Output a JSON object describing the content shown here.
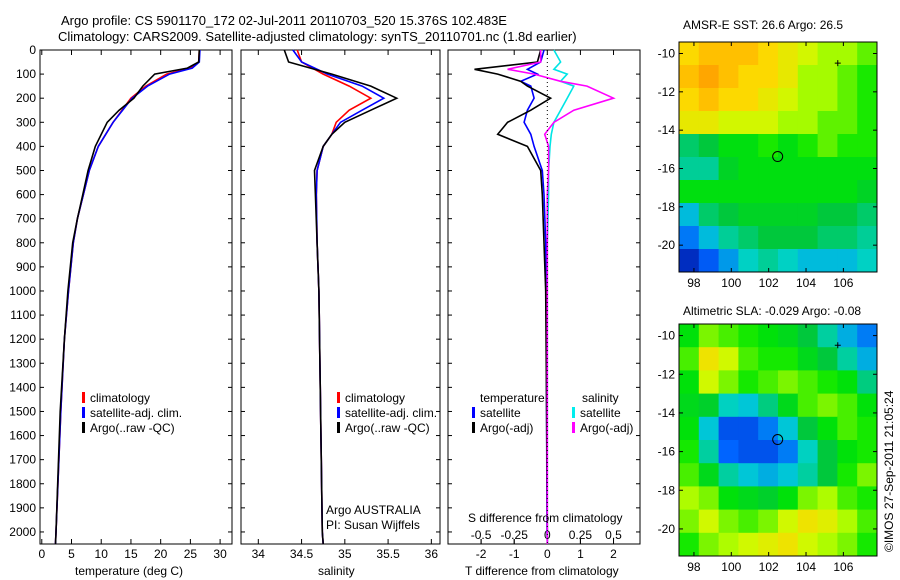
{
  "title": {
    "line1": "Argo profile: CS 5901170_172 02-Jul-2011 20110703_520 15.376S 102.483E",
    "line2": "Climatology: CARS2009. Satellite-adjusted climatology: synTS_20110701.nc (1.8d earlier)"
  },
  "legend_ts": {
    "clim": "climatology",
    "sat": "satellite-adj. clim.",
    "argo": "Argo(..raw -QC)"
  },
  "legend_diff": {
    "temp": "temperature",
    "sal": "salinity",
    "sat": "satellite",
    "argo": "Argo(-adj)"
  },
  "argo_note": {
    "line1": "Argo AUSTRALIA",
    "line2": "PI: Susan Wijffels"
  },
  "side_label": "©IMOS 27-Sep-2011 21:05:24",
  "colors": {
    "clim": "#ff0000",
    "sat": "#0000ff",
    "argo": "#000000",
    "s_sat": "#00e5e5",
    "s_argo": "#ff00ff"
  },
  "chart_data": [
    {
      "type": "line",
      "xlabel": "temperature (deg C)",
      "ylabel": "",
      "xlim": [
        -0.3,
        32
      ],
      "ylim": [
        2050,
        0
      ],
      "xticks": [
        0,
        5,
        10,
        15,
        20,
        25,
        30
      ],
      "yticks": [
        0,
        100,
        200,
        300,
        400,
        500,
        600,
        700,
        800,
        900,
        1000,
        1100,
        1200,
        1300,
        1400,
        1500,
        1600,
        1700,
        1800,
        1900,
        2000
      ],
      "depth": [
        0,
        50,
        75,
        100,
        150,
        200,
        250,
        300,
        400,
        500,
        600,
        700,
        800,
        1000,
        1200,
        1500,
        2000,
        2050
      ],
      "series": [
        {
          "name": "climatology",
          "values": [
            26.5,
            26.4,
            25,
            21,
            17.5,
            15,
            13.5,
            12,
            9.5,
            8,
            7,
            6,
            5.3,
            4.5,
            3.8,
            3.2,
            2.4,
            2.3
          ]
        },
        {
          "name": "satellite-adj. clim.",
          "values": [
            26.6,
            26.5,
            25.3,
            21.5,
            17.8,
            15.2,
            13.6,
            12,
            9.5,
            8,
            7,
            6,
            5.3,
            4.5,
            3.8,
            3.2,
            2.4,
            2.3
          ]
        },
        {
          "name": "Argo(..raw -QC)",
          "values": [
            26.5,
            26.4,
            24.5,
            19,
            17,
            15.5,
            13,
            11,
            9,
            7.8,
            6.9,
            6,
            5.2,
            4.4,
            3.8,
            3.1,
            2.4,
            2.3
          ]
        }
      ]
    },
    {
      "type": "line",
      "xlabel": "salinity",
      "xlim": [
        33.8,
        36.1
      ],
      "ylim": [
        2050,
        0
      ],
      "xticks": [
        34,
        34.5,
        35,
        35.5,
        36
      ],
      "depth": [
        0,
        50,
        100,
        150,
        200,
        250,
        300,
        350,
        400,
        500,
        600,
        800,
        1000,
        1500,
        2000,
        2050
      ],
      "series": [
        {
          "name": "climatology",
          "values": [
            34.45,
            34.5,
            34.75,
            35.05,
            35.3,
            35.05,
            34.9,
            34.85,
            34.75,
            34.68,
            34.67,
            34.68,
            34.7,
            34.72,
            34.74,
            34.75
          ]
        },
        {
          "name": "satellite-adj. clim.",
          "values": [
            34.4,
            34.5,
            34.8,
            35.2,
            35.45,
            35.2,
            34.95,
            34.85,
            34.75,
            34.68,
            34.67,
            34.68,
            34.7,
            34.72,
            34.74,
            34.75
          ]
        },
        {
          "name": "Argo(..raw -QC)",
          "values": [
            34.3,
            34.35,
            34.85,
            35.3,
            35.6,
            35.3,
            35.0,
            34.85,
            34.75,
            34.65,
            34.66,
            34.68,
            34.7,
            34.72,
            34.74,
            34.75
          ]
        }
      ]
    },
    {
      "type": "line",
      "xlabel": "T difference from climatology",
      "xlabel2": "S difference from climatology",
      "xlim": [
        -3,
        2.8
      ],
      "ylim": [
        2050,
        0
      ],
      "xticks": [
        -2,
        -1,
        0,
        1,
        2
      ],
      "xticks2": [
        -0.5,
        -0.25,
        0,
        0.25,
        0.5
      ],
      "depth": [
        0,
        50,
        80,
        100,
        130,
        150,
        200,
        250,
        300,
        350,
        400,
        500,
        600,
        800,
        1000,
        1500,
        2000,
        2050
      ],
      "series": [
        {
          "name": "T satellite",
          "values": [
            -0.1,
            -0.2,
            -0.6,
            -0.3,
            -0.8,
            -0.5,
            -0.4,
            -0.6,
            -0.7,
            -0.5,
            -0.4,
            -0.15,
            -0.1,
            -0.05,
            -0.03,
            -0.02,
            -0.01,
            0
          ]
        },
        {
          "name": "T Argo(-adj)",
          "values": [
            -0.2,
            -0.3,
            -2.2,
            -1.5,
            -0.8,
            -0.6,
            0.1,
            -0.5,
            -1.2,
            -1.5,
            -0.6,
            -0.2,
            -0.15,
            -0.1,
            -0.05,
            -0.02,
            0,
            0
          ]
        },
        {
          "name": "S satellite",
          "values": [
            0.05,
            0.1,
            0.05,
            0.15,
            0.1,
            0.2,
            0.15,
            0.1,
            0.05,
            0.03,
            0.02,
            0.01,
            0.01,
            0,
            0,
            0,
            0,
            0
          ]
        },
        {
          "name": "S Argo(-adj)",
          "values": [
            -0.05,
            -0.05,
            -0.3,
            -0.1,
            0.1,
            0.3,
            0.5,
            0.2,
            0.05,
            -0.02,
            0.01,
            0.01,
            0,
            0,
            0,
            0,
            0,
            0
          ]
        }
      ]
    },
    {
      "type": "heatmap",
      "title": "AMSR-E SST: 26.6 Argo: 26.5",
      "xlim": [
        97.2,
        107.8
      ],
      "ylim": [
        -21.4,
        -9.4
      ],
      "xticks": [
        98,
        100,
        102,
        104,
        106
      ],
      "yticks": [
        -10,
        -12,
        -14,
        -16,
        -18,
        -20
      ],
      "marker": [
        102.483,
        -15.376
      ],
      "values": [
        [
          26.8,
          26.9,
          26.9,
          26.9,
          26.8,
          26.7,
          26.6,
          26.5,
          26.5,
          26.4
        ],
        [
          26.9,
          27.0,
          26.9,
          26.8,
          26.8,
          26.7,
          26.5,
          26.5,
          26.4,
          26.3
        ],
        [
          26.8,
          26.9,
          26.8,
          26.8,
          26.7,
          26.6,
          26.5,
          26.5,
          26.4,
          26.3
        ],
        [
          26.7,
          26.7,
          26.6,
          26.6,
          26.6,
          26.5,
          26.5,
          26.4,
          26.4,
          26.3
        ],
        [
          25.9,
          26.0,
          26.2,
          26.2,
          26.3,
          26.2,
          26.3,
          26.4,
          26.3,
          26.3
        ],
        [
          25.8,
          25.8,
          26.1,
          26.2,
          26.2,
          26.2,
          26.2,
          26.2,
          26.2,
          26.2
        ],
        [
          26.2,
          26.2,
          26.2,
          26.2,
          26.2,
          26.2,
          26.2,
          26.2,
          26.2,
          26.1
        ],
        [
          25.6,
          25.9,
          26.0,
          26.1,
          26.1,
          26.1,
          26.1,
          26.0,
          26.0,
          25.9
        ],
        [
          25.4,
          25.6,
          25.8,
          25.9,
          26.0,
          26.0,
          26.0,
          25.9,
          25.9,
          25.8
        ],
        [
          25.1,
          25.3,
          25.5,
          25.7,
          25.8,
          25.7,
          25.6,
          25.6,
          25.6,
          25.7
        ]
      ]
    },
    {
      "type": "heatmap",
      "title": "Altimetric SLA: -0.029 Argo: -0.08",
      "xlim": [
        97.2,
        107.8
      ],
      "ylim": [
        -21.4,
        -9.4
      ],
      "xticks": [
        98,
        100,
        102,
        104,
        106
      ],
      "yticks": [
        -10,
        -12,
        -14,
        -16,
        -18,
        -20
      ],
      "marker": [
        102.483,
        -15.376
      ],
      "values": [
        [
          0.03,
          0.06,
          0.05,
          0.04,
          0.03,
          0.02,
          0.0,
          -0.03,
          -0.06,
          -0.08
        ],
        [
          0.05,
          0.1,
          0.08,
          0.05,
          0.04,
          0.04,
          0.02,
          0.0,
          -0.03,
          -0.06
        ],
        [
          0.03,
          0.08,
          0.06,
          0.04,
          0.05,
          0.06,
          0.05,
          0.04,
          0.03,
          -0.02
        ],
        [
          0.02,
          0.01,
          -0.04,
          -0.05,
          -0.02,
          0.02,
          0.05,
          0.06,
          0.05,
          0.03
        ],
        [
          0.03,
          -0.05,
          -0.1,
          -0.1,
          -0.08,
          -0.05,
          0.0,
          0.03,
          0.05,
          0.04
        ],
        [
          0.04,
          -0.03,
          -0.09,
          -0.1,
          -0.1,
          -0.08,
          -0.04,
          0.0,
          0.03,
          0.04
        ],
        [
          0.05,
          0.02,
          -0.03,
          -0.05,
          -0.06,
          -0.05,
          -0.03,
          0.0,
          0.04,
          0.06
        ],
        [
          0.07,
          0.06,
          0.03,
          0.02,
          0.01,
          0.03,
          0.06,
          0.07,
          0.05,
          0.04
        ],
        [
          0.06,
          0.08,
          0.06,
          0.05,
          0.06,
          0.08,
          0.1,
          0.09,
          0.07,
          0.05
        ],
        [
          0.04,
          0.06,
          0.07,
          0.08,
          0.09,
          0.1,
          0.08,
          0.07,
          0.06,
          0.04
        ]
      ]
    }
  ]
}
